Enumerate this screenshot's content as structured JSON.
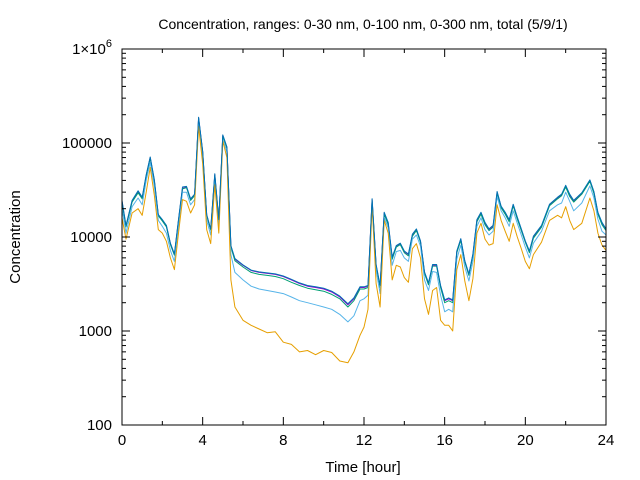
{
  "chart_data": {
    "type": "line",
    "title": "Concentration, ranges: 0-30 nm, 0-100 nm, 0-300 nm, total (5/9/1)",
    "xlabel": "Time [hour]",
    "ylabel": "Concentration",
    "xlim": [
      0,
      24
    ],
    "ylim": [
      100,
      1000000
    ],
    "yscale": "log",
    "grid": false,
    "legend": "none",
    "x_ticks": [
      0,
      4,
      8,
      12,
      16,
      20,
      24
    ],
    "x_tick_labels": [
      "0",
      "4",
      "8",
      "12",
      "16",
      "20",
      "24"
    ],
    "y_ticks": [
      100,
      1000,
      10000,
      100000,
      1000000
    ],
    "y_tick_labels": [
      "100",
      "1000",
      "10000",
      "100000",
      "1×10⁶"
    ],
    "x": [
      0,
      0.2,
      0.5,
      0.8,
      1.0,
      1.2,
      1.4,
      1.6,
      1.8,
      2.0,
      2.2,
      2.4,
      2.6,
      2.8,
      3.0,
      3.2,
      3.4,
      3.6,
      3.8,
      4.0,
      4.2,
      4.4,
      4.6,
      4.8,
      5.0,
      5.2,
      5.4,
      5.6,
      6.0,
      6.4,
      6.8,
      7.2,
      7.6,
      8.0,
      8.4,
      8.8,
      9.2,
      9.6,
      10.0,
      10.4,
      10.8,
      11.2,
      11.5,
      11.8,
      12.0,
      12.2,
      12.4,
      12.6,
      12.8,
      13.0,
      13.2,
      13.4,
      13.6,
      13.8,
      14.0,
      14.2,
      14.4,
      14.6,
      14.8,
      15.0,
      15.2,
      15.4,
      15.6,
      15.8,
      16.0,
      16.2,
      16.4,
      16.6,
      16.8,
      17.0,
      17.2,
      17.4,
      17.6,
      17.8,
      18.0,
      18.2,
      18.4,
      18.6,
      18.8,
      19.0,
      19.2,
      19.4,
      19.6,
      19.8,
      20.0,
      20.2,
      20.4,
      20.8,
      21.2,
      21.6,
      21.8,
      22.0,
      22.2,
      22.4,
      22.8,
      23.2,
      23.4,
      23.6,
      23.8,
      24.0
    ],
    "series": [
      {
        "color": "#9400d3",
        "values": [
          24000,
          13000,
          24000,
          30000,
          26000,
          45000,
          70000,
          40000,
          17000,
          15000,
          13000,
          8500,
          6500,
          15000,
          33000,
          34000,
          25000,
          28000,
          185000,
          80000,
          17000,
          12000,
          46000,
          15000,
          120000,
          90000,
          8000,
          5800,
          5000,
          4400,
          4200,
          4100,
          4000,
          3800,
          3500,
          3200,
          3000,
          2900,
          2800,
          2600,
          2300,
          1900,
          2200,
          2900,
          2900,
          3000,
          25000,
          5000,
          3000,
          18000,
          14000,
          6000,
          8000,
          8500,
          7000,
          6500,
          10500,
          12000,
          9000,
          4200,
          3200,
          5000,
          5000,
          3000,
          2100,
          2200,
          2100,
          7000,
          9500,
          5500,
          4000,
          6500,
          15000,
          18000,
          14000,
          12000,
          13000,
          30000,
          21000,
          18000,
          15000,
          22000,
          16000,
          12000,
          9000,
          7000,
          10000,
          13000,
          22000,
          26000,
          28000,
          35000,
          28000,
          24000,
          29000,
          40000,
          30000,
          18000,
          14000,
          12000
        ]
      },
      {
        "color": "#009e73",
        "values": [
          23000,
          12800,
          23500,
          29500,
          25500,
          44000,
          69000,
          39500,
          16800,
          14800,
          12800,
          8300,
          6400,
          14800,
          32500,
          33500,
          24500,
          27500,
          182000,
          79000,
          16800,
          11800,
          45000,
          14800,
          118000,
          88000,
          7800,
          5600,
          4800,
          4200,
          4000,
          3900,
          3800,
          3600,
          3300,
          3050,
          2850,
          2750,
          2650,
          2450,
          2200,
          1800,
          2100,
          2800,
          2800,
          2900,
          24500,
          4900,
          2900,
          17500,
          13500,
          5800,
          7800,
          8300,
          6800,
          6300,
          10200,
          11700,
          8800,
          4100,
          3100,
          4900,
          4900,
          2900,
          2000,
          2100,
          2000,
          6800,
          9200,
          5400,
          3900,
          6300,
          14500,
          17500,
          13500,
          11700,
          12700,
          29000,
          20500,
          17500,
          14500,
          21500,
          15500,
          11700,
          8800,
          6800,
          9700,
          12700,
          21500,
          25500,
          27500,
          34000,
          27000,
          23500,
          28500,
          39000,
          29000,
          17500,
          13500,
          11700
        ]
      },
      {
        "color": "#56b4e9",
        "values": [
          20000,
          11000,
          21000,
          26000,
          22000,
          40000,
          62000,
          35000,
          15000,
          13000,
          11000,
          7200,
          5500,
          13000,
          30000,
          30000,
          22000,
          25000,
          170000,
          70000,
          15000,
          10500,
          40000,
          13000,
          110000,
          80000,
          6500,
          4200,
          3500,
          3000,
          2800,
          2700,
          2600,
          2500,
          2300,
          2100,
          2000,
          1900,
          1800,
          1700,
          1500,
          1250,
          1450,
          2100,
          2200,
          2400,
          23000,
          4400,
          2500,
          16000,
          12500,
          5000,
          7000,
          7200,
          6000,
          5500,
          9500,
          10500,
          8000,
          3500,
          2700,
          4300,
          4200,
          2400,
          1600,
          1700,
          1600,
          5800,
          8200,
          4800,
          3400,
          5500,
          13000,
          16000,
          12000,
          10500,
          11500,
          27000,
          19000,
          16000,
          13000,
          19000,
          14000,
          10500,
          7800,
          6000,
          8600,
          11500,
          19000,
          22000,
          23000,
          30000,
          24000,
          19000,
          23000,
          35000,
          26000,
          15500,
          11500,
          10500
        ]
      },
      {
        "color": "#e69f00",
        "values": [
          16000,
          9500,
          18000,
          20000,
          17000,
          30000,
          55000,
          28000,
          12000,
          11000,
          9000,
          6000,
          4500,
          11000,
          25000,
          24000,
          18000,
          22000,
          150000,
          60000,
          12000,
          8500,
          36000,
          11000,
          105000,
          70000,
          3500,
          1800,
          1300,
          1150,
          1050,
          960,
          980,
          760,
          720,
          600,
          620,
          560,
          620,
          590,
          480,
          460,
          600,
          900,
          1100,
          1700,
          22000,
          3200,
          1800,
          15000,
          11000,
          3500,
          5000,
          4800,
          3700,
          3300,
          7500,
          8500,
          6000,
          2200,
          1500,
          2700,
          2900,
          1300,
          1150,
          1150,
          1000,
          4500,
          6500,
          3400,
          2100,
          3600,
          11000,
          14000,
          9500,
          8200,
          8500,
          22000,
          15000,
          11500,
          9000,
          14000,
          10000,
          7500,
          5500,
          4600,
          6500,
          8800,
          15000,
          17000,
          16000,
          21000,
          15000,
          12000,
          14000,
          26000,
          19000,
          11000,
          8200,
          7200
        ]
      },
      {
        "color": "#0072b2",
        "values": [
          24500,
          13300,
          24500,
          31000,
          26500,
          46000,
          71000,
          41000,
          17300,
          15300,
          13300,
          8600,
          6600,
          15300,
          34000,
          34500,
          25500,
          28500,
          188000,
          81000,
          17300,
          12200,
          47000,
          15300,
          122000,
          91000,
          8100,
          5900,
          5050,
          4450,
          4250,
          4150,
          4050,
          3850,
          3550,
          3250,
          3050,
          2950,
          2850,
          2650,
          2350,
          1950,
          2250,
          2950,
          2950,
          3050,
          25500,
          5100,
          3050,
          18300,
          14300,
          6100,
          8100,
          8600,
          7100,
          6600,
          10700,
          12200,
          9100,
          4250,
          3250,
          5100,
          5100,
          3050,
          2150,
          2250,
          2150,
          7100,
          9600,
          5600,
          4050,
          6600,
          15300,
          18300,
          14300,
          12200,
          13300,
          30500,
          21300,
          18300,
          15300,
          22300,
          16300,
          12200,
          9100,
          7100,
          10200,
          13300,
          22300,
          26500,
          28500,
          35500,
          28500,
          24500,
          29500,
          40500,
          30500,
          18300,
          14300,
          12200
        ]
      }
    ]
  }
}
